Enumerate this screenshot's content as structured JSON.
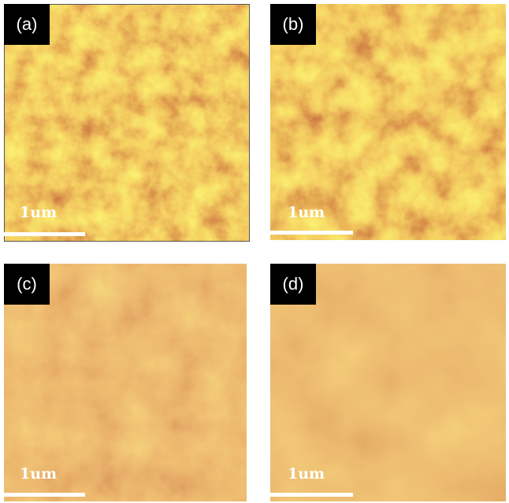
{
  "panels": [
    {
      "label": "(a)",
      "scale": "1um"
    },
    {
      "label": "(b)",
      "scale": "1um"
    },
    {
      "label": "(c)",
      "scale": "1um"
    },
    {
      "label": "(d)",
      "scale": "1um"
    }
  ]
}
